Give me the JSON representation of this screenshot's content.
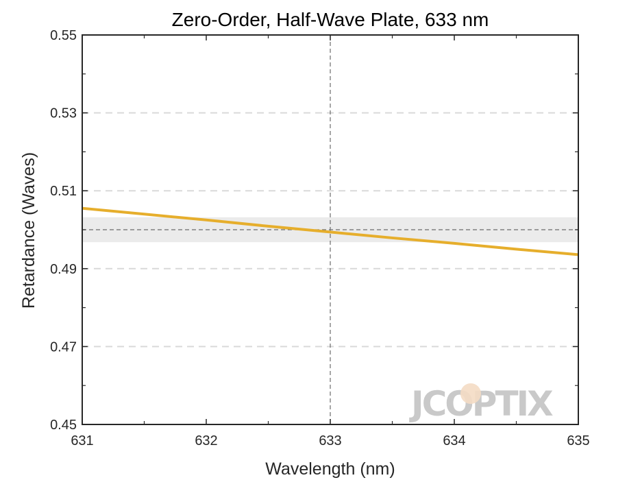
{
  "chart_data": {
    "type": "line",
    "title": "Zero-Order, Half-Wave Plate, 633 nm",
    "xlabel": "Wavelength (nm)",
    "ylabel": "Retardance (Waves)",
    "xlim": [
      631,
      635
    ],
    "ylim": [
      0.45,
      0.55
    ],
    "xticks": [
      631,
      632,
      633,
      634,
      635
    ],
    "xtick_labels": [
      "631",
      "632",
      "633",
      "634",
      "635"
    ],
    "yticks": [
      0.45,
      0.47,
      0.49,
      0.51,
      0.53,
      0.55
    ],
    "ytick_labels": [
      "0.45",
      "0.47",
      "0.49",
      "0.51",
      "0.53",
      "0.55"
    ],
    "grid": "horizontal-dashed",
    "series": [
      {
        "color": "#e6ae2c",
        "x": [
          631,
          631.5,
          632,
          632.5,
          633,
          633.5,
          634,
          634.5,
          635
        ],
        "y": [
          0.5055,
          0.504,
          0.5025,
          0.5009,
          0.4994,
          0.4979,
          0.4965,
          0.495,
          0.4936
        ]
      }
    ],
    "reference_lines": {
      "vertical_x": 633,
      "horizontal_y": 0.5,
      "tolerance_band": [
        0.4968,
        0.5032
      ]
    },
    "colors": {
      "line": "#e6ae2c",
      "band": "#ebebeb",
      "grid": "#d9d9d9",
      "reference": "#6b6b6b",
      "axes": "#262626"
    }
  },
  "watermark": {
    "text": "JCOPTIX",
    "color": "#c9c9c9",
    "accent_color": "#f4dcc4"
  }
}
